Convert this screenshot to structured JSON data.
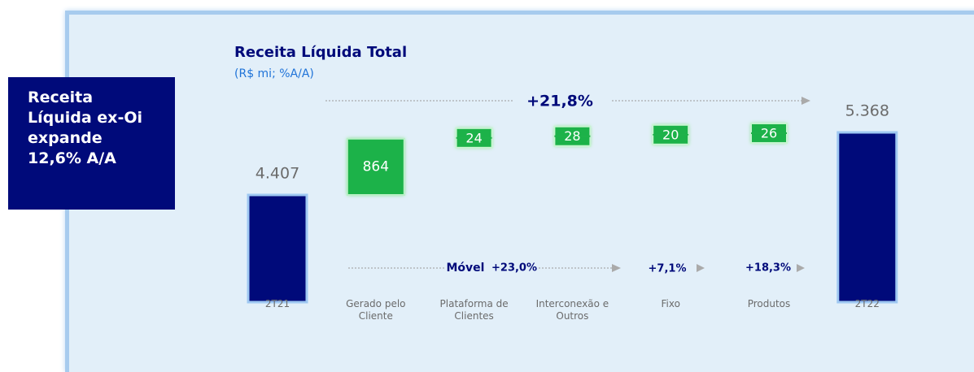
{
  "sidebar": {
    "text": "Receita Líquida ex-Oi expande 12,6% A/A"
  },
  "chart_data": {
    "type": "waterfall",
    "title": "Receita Líquida Total",
    "subtitle": "(R$ mi; %A/A)",
    "categories": [
      "2T21",
      "Gerado pelo Cliente",
      "Plataforma de Clientes",
      "Interconexão e Outros",
      "Fixo",
      "Produtos",
      "2T22"
    ],
    "values": [
      4407,
      864,
      24,
      28,
      20,
      26,
      5368
    ],
    "value_labels": [
      "4.407",
      "864",
      "24",
      "28",
      "20",
      "26",
      "5.368"
    ],
    "measure": [
      "total",
      "relative",
      "relative",
      "relative",
      "relative",
      "relative",
      "total"
    ],
    "total_color": "#000a7a",
    "increase_color": "#1fb24a",
    "annotations": {
      "total_growth": "+21,8%",
      "mobile_label": "Móvel",
      "mobile_growth": "+23,0%",
      "fixed_growth": "+7,1%",
      "products_growth": "+18,3%"
    }
  }
}
